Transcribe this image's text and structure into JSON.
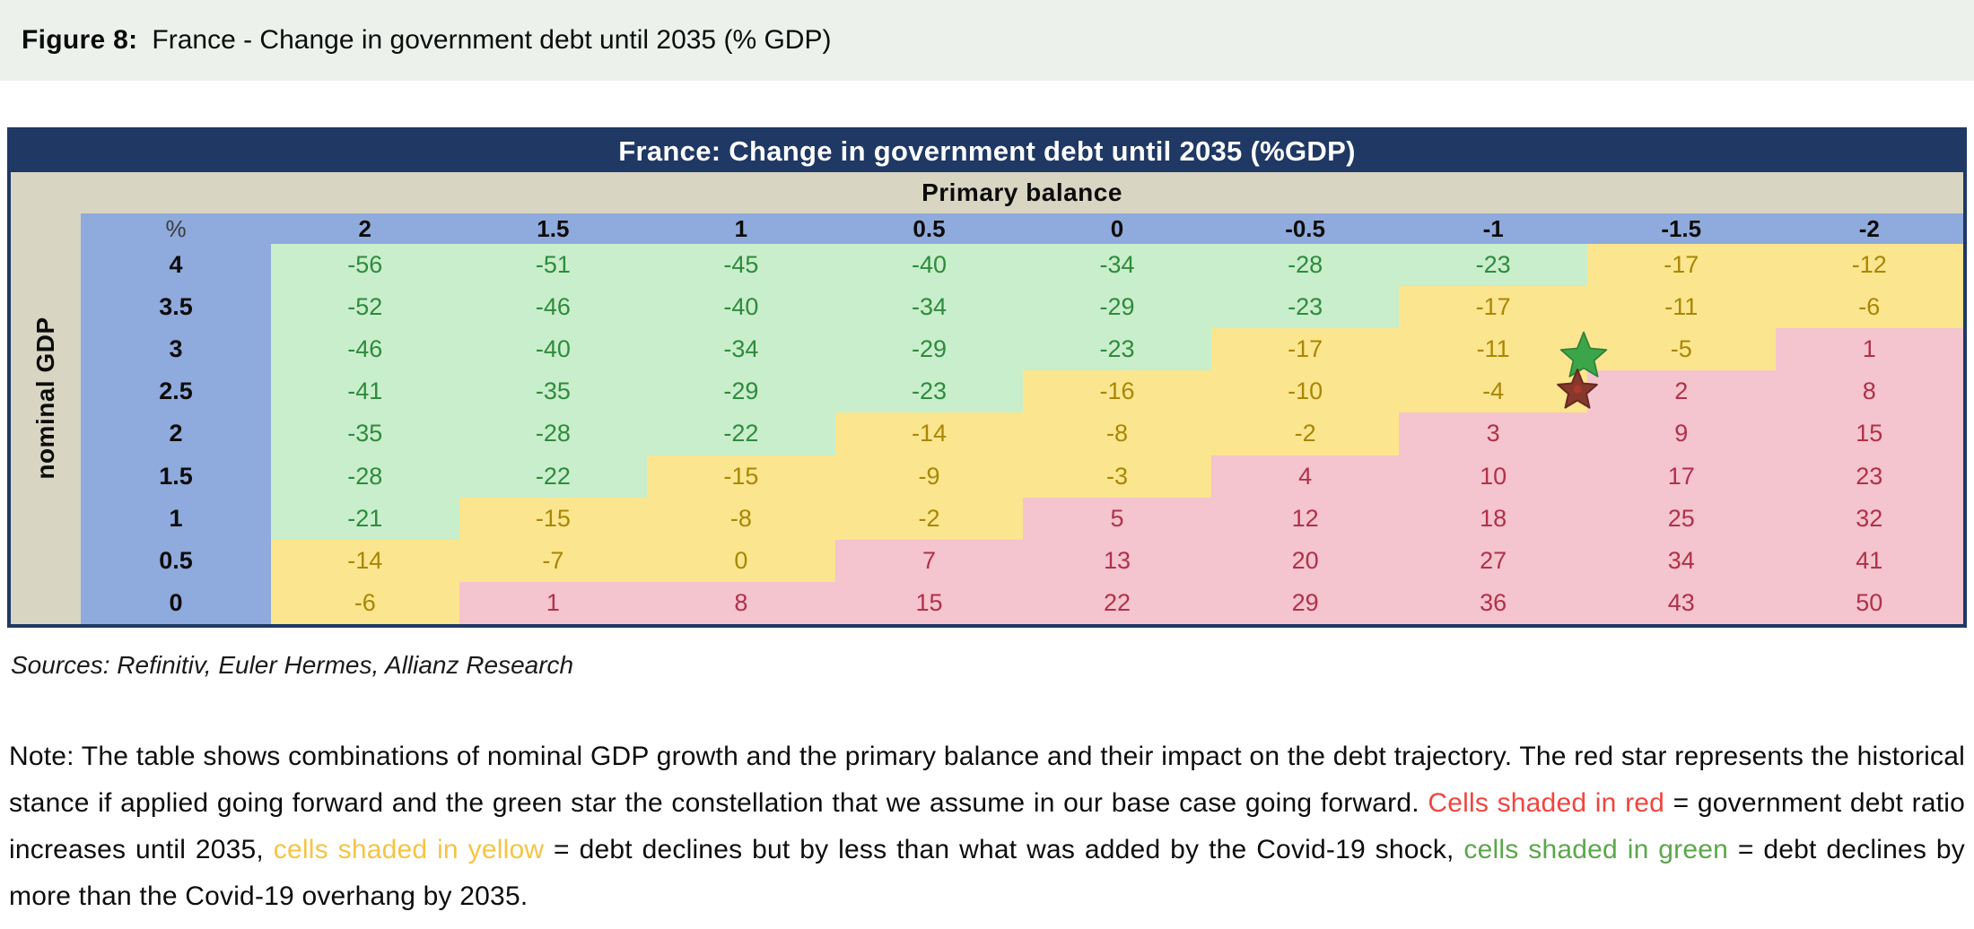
{
  "figure": {
    "label": "Figure 8:",
    "title": "France - Change in government debt until 2035 (% GDP)"
  },
  "table": {
    "title": "France: Change in government debt until 2035 (%GDP)",
    "col_axis_label": "Primary balance",
    "row_axis_label": "nominal GDP",
    "corner_label": "%"
  },
  "chart_data": {
    "type": "heatmap",
    "title": "France: Change in government debt until 2035 (%GDP)",
    "xlabel": "Primary balance",
    "ylabel": "nominal GDP",
    "unit": "% GDP",
    "columns": [
      "2",
      "1.5",
      "1",
      "0.5",
      "0",
      "-0.5",
      "-1",
      "-1.5",
      "-2"
    ],
    "rows": [
      "4",
      "3.5",
      "3",
      "2.5",
      "2",
      "1.5",
      "1",
      "0.5",
      "0"
    ],
    "values": [
      [
        -56,
        -51,
        -45,
        -40,
        -34,
        -28,
        -23,
        -17,
        -12
      ],
      [
        -52,
        -46,
        -40,
        -34,
        -29,
        -23,
        -17,
        -11,
        -6
      ],
      [
        -46,
        -40,
        -34,
        -29,
        -23,
        -17,
        -11,
        -5,
        1
      ],
      [
        -41,
        -35,
        -29,
        -23,
        -16,
        -10,
        -4,
        2,
        8
      ],
      [
        -35,
        -28,
        -22,
        -14,
        -8,
        -2,
        3,
        9,
        15
      ],
      [
        -28,
        -22,
        -15,
        -9,
        -3,
        4,
        10,
        17,
        23
      ],
      [
        -21,
        -15,
        -8,
        -2,
        5,
        12,
        18,
        25,
        32
      ],
      [
        -14,
        -7,
        0,
        7,
        13,
        20,
        27,
        34,
        41
      ],
      [
        -6,
        1,
        8,
        15,
        22,
        29,
        36,
        43,
        50
      ]
    ],
    "cell_colors": [
      [
        "green",
        "green",
        "green",
        "green",
        "green",
        "green",
        "green",
        "yellow",
        "yellow"
      ],
      [
        "green",
        "green",
        "green",
        "green",
        "green",
        "green",
        "yellow",
        "yellow",
        "yellow"
      ],
      [
        "green",
        "green",
        "green",
        "green",
        "green",
        "yellow",
        "yellow",
        "yellow",
        "red"
      ],
      [
        "green",
        "green",
        "green",
        "green",
        "yellow",
        "yellow",
        "yellow",
        "red",
        "red"
      ],
      [
        "green",
        "green",
        "green",
        "yellow",
        "yellow",
        "yellow",
        "red",
        "red",
        "red"
      ],
      [
        "green",
        "green",
        "yellow",
        "yellow",
        "yellow",
        "red",
        "red",
        "red",
        "red"
      ],
      [
        "green",
        "yellow",
        "yellow",
        "yellow",
        "red",
        "red",
        "red",
        "red",
        "red"
      ],
      [
        "yellow",
        "yellow",
        "yellow",
        "red",
        "red",
        "red",
        "red",
        "red",
        "red"
      ],
      [
        "yellow",
        "red",
        "red",
        "red",
        "red",
        "red",
        "red",
        "red",
        "red"
      ]
    ],
    "markers": [
      {
        "name": "green-star",
        "meaning": "constellation assumed in base case going forward",
        "row": "3",
        "between_columns": [
          "-1",
          "-1.5"
        ]
      },
      {
        "name": "red-star",
        "meaning": "historical stance if applied going forward",
        "row": "2.5",
        "between_columns": [
          "-1",
          "-1.5"
        ]
      }
    ],
    "color_legend": {
      "red": "government debt ratio increases until 2035",
      "yellow": "debt declines but by less than what was added by the Covid-19 shock",
      "green": "debt declines by more than the Covid-19 overhang by 2035"
    },
    "legend_position": "note below table",
    "grid": false
  },
  "sources": "Sources: Refinitiv, Euler Hermes, Allianz Research",
  "note": {
    "segments": [
      {
        "text": "Note: The table shows combinations of nominal GDP growth and the primary balance and their impact on the debt trajectory. The red star represents the historical stance if applied going forward and the green star the constellation that we assume in our base case going forward. "
      },
      {
        "text": "Cells shaded in red",
        "color": "#f0453f"
      },
      {
        "text": " = government debt ratio increases until 2035, "
      },
      {
        "text": "cells shaded in yellow",
        "color": "#f6c445"
      },
      {
        "text": " = debt declines but by less than what was added by the Covid-19 shock, "
      },
      {
        "text": "cells shaded in green",
        "color": "#5ba74b"
      },
      {
        "text": " = debt declines by more than the Covid-19 overhang by 2035."
      }
    ]
  },
  "palette": {
    "banner-bg": "#ecf1ec",
    "navy": "#1f3864",
    "beige": "#d9d5c3",
    "header-blue": "#8faadc",
    "green-bg": "#c9eecb",
    "green-text": "#2e8b3d",
    "yellow-bg": "#fbe58e",
    "yellow-text": "#a98605",
    "pink-bg": "#f4c4cf",
    "pink-text": "#b03148",
    "star-green": "#3da549",
    "star-green-edge": "#2e8038",
    "star-red": "#87372c",
    "star-red-edge": "#642a20"
  }
}
